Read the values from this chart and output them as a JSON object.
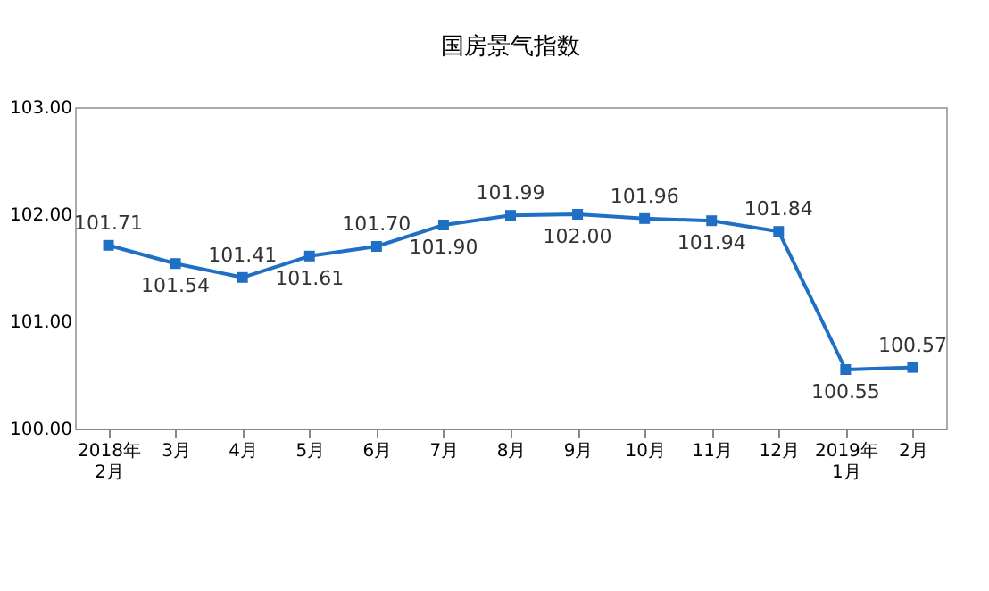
{
  "chart_data": {
    "type": "line",
    "title": "国房景气指数",
    "categories": [
      "2018年\n2月",
      "3月",
      "4月",
      "5月",
      "6月",
      "7月",
      "8月",
      "9月",
      "10月",
      "11月",
      "12月",
      "2019年\n1月",
      "2月"
    ],
    "series": [
      {
        "color": "#1f6fc5",
        "values": [
          101.71,
          101.54,
          101.41,
          101.61,
          101.7,
          101.9,
          101.99,
          102.0,
          101.96,
          101.94,
          101.84,
          100.55,
          100.57
        ],
        "value_labels": [
          "101.71",
          "101.54",
          "101.41",
          "101.61",
          "101.70",
          "101.90",
          "101.99",
          "102.00",
          "101.96",
          "101.94",
          "101.84",
          "100.55",
          "100.57"
        ]
      }
    ],
    "ylim": [
      100,
      103
    ],
    "yticks": [
      {
        "value": 100,
        "label": "100.00"
      },
      {
        "value": 101,
        "label": "101.00"
      },
      {
        "value": 102,
        "label": "102.00"
      },
      {
        "value": 103,
        "label": "103.00"
      }
    ],
    "marker": "square",
    "line_style": "solid"
  }
}
